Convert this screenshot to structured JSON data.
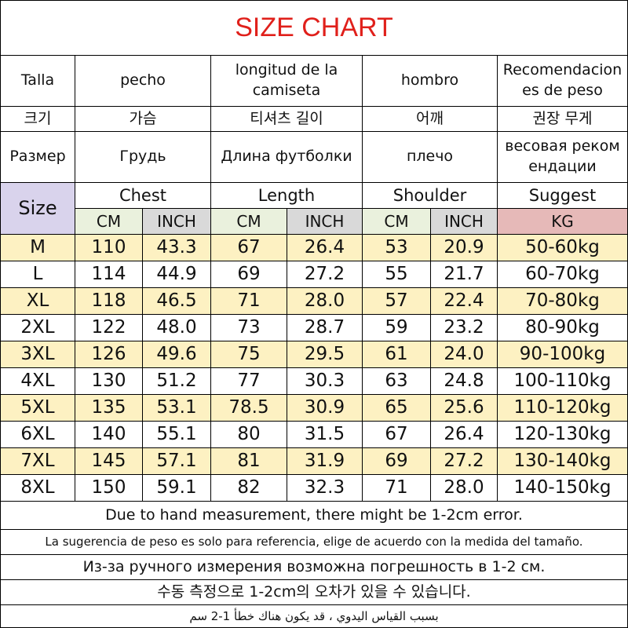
{
  "title": "SIZE CHART",
  "header_rows": [
    [
      "Talla",
      "pecho",
      "longitud de la camiseta",
      "hombro",
      "Recomendaciones de peso"
    ],
    [
      "크기",
      "가슴",
      "티셔츠 길이",
      "어깨",
      "권장 무게"
    ],
    [
      "Размер",
      "Грудь",
      "Длина футболки",
      "плечо",
      "весовая рекомендации"
    ]
  ],
  "size_label": "Size",
  "groups": [
    "Chest",
    "Length",
    "Shoulder",
    "Suggest"
  ],
  "units": [
    "CM",
    "INCH",
    "CM",
    "INCH",
    "CM",
    "INCH",
    "KG"
  ],
  "rows": [
    [
      "M",
      "110",
      "43.3",
      "67",
      "26.4",
      "53",
      "20.9",
      "50-60kg"
    ],
    [
      "L",
      "114",
      "44.9",
      "69",
      "27.2",
      "55",
      "21.7",
      "60-70kg"
    ],
    [
      "XL",
      "118",
      "46.5",
      "71",
      "28.0",
      "57",
      "22.4",
      "70-80kg"
    ],
    [
      "2XL",
      "122",
      "48.0",
      "73",
      "28.7",
      "59",
      "23.2",
      "80-90kg"
    ],
    [
      "3XL",
      "126",
      "49.6",
      "75",
      "29.5",
      "61",
      "24.0",
      "90-100kg"
    ],
    [
      "4XL",
      "130",
      "51.2",
      "77",
      "30.3",
      "63",
      "24.8",
      "100-110kg"
    ],
    [
      "5XL",
      "135",
      "53.1",
      "78.5",
      "30.9",
      "65",
      "25.6",
      "110-120kg"
    ],
    [
      "6XL",
      "140",
      "55.1",
      "80",
      "31.5",
      "67",
      "26.4",
      "120-130kg"
    ],
    [
      "7XL",
      "145",
      "57.1",
      "81",
      "31.9",
      "69",
      "27.2",
      "130-140kg"
    ],
    [
      "8XL",
      "150",
      "59.1",
      "82",
      "32.3",
      "71",
      "28.0",
      "140-150kg"
    ]
  ],
  "notes": [
    "Due to hand measurement, there might be 1-2cm error.",
    "La sugerencia de peso es solo para referencia, elige de acuerdo con la medida del tamaño.",
    "Из-за ручного измерения возможна погрешность в 1-2 см.",
    "수동 측정으로 1-2cm의 오차가 있을 수 있습니다.",
    "بسبب القياس اليدوي ، قد يكون هناك خطأ 1-2 سم"
  ]
}
